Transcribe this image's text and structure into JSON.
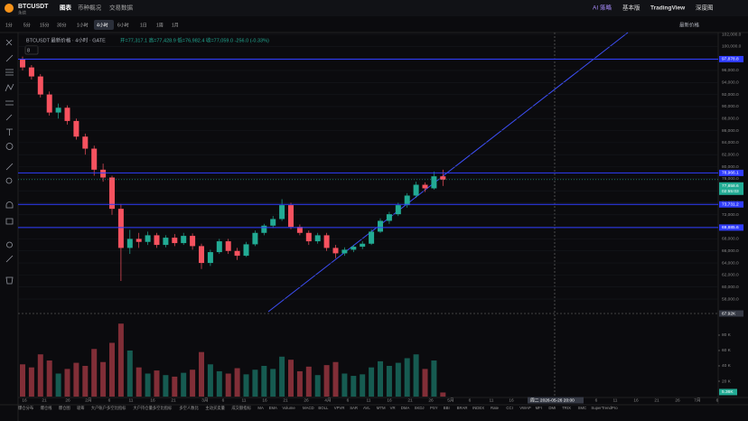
{
  "header": {
    "symbol": "BTCUSDT",
    "contract": "永续",
    "tabs": [
      "图表",
      "币种概况",
      "交易数据"
    ],
    "right": [
      "AI 策略",
      "基本版",
      "TradingView",
      "深度图"
    ]
  },
  "toolbar": {
    "intervals": [
      "1分",
      "5分",
      "15分",
      "30分",
      "1小时",
      "4小时",
      "6小时",
      "1日",
      "1周",
      "1月"
    ],
    "price_mode": "最新价格"
  },
  "legend": {
    "title": "BTCUSDT 最新价格 · 4小时 · GATE",
    "ohlc": "开=77,317.1 高=77,428.9 低=76,982.4 收=77,059.0 -256.0 (-0.33%)",
    "indicator_count": "8"
  },
  "chart_data": {
    "type": "candlestick",
    "up_color": "#22ab94",
    "down_color": "#f7525f",
    "grid": true,
    "candles": [
      [
        97800,
        98300,
        96000,
        96500
      ],
      [
        96500,
        96900,
        94500,
        95000
      ],
      [
        95000,
        95400,
        91500,
        92000
      ],
      [
        92000,
        92500,
        88500,
        89000
      ],
      [
        89000,
        90500,
        88000,
        89800
      ],
      [
        89800,
        90200,
        87000,
        87600
      ],
      [
        87600,
        88000,
        84500,
        85000
      ],
      [
        85000,
        85500,
        82000,
        83000
      ],
      [
        83000,
        83500,
        78500,
        79500
      ],
      [
        79500,
        80500,
        77500,
        78200
      ],
      [
        78200,
        78500,
        72000,
        73000
      ],
      [
        73000,
        73800,
        61000,
        66500
      ],
      [
        66500,
        69500,
        65500,
        68000
      ],
      [
        68000,
        69000,
        66500,
        67500
      ],
      [
        67500,
        69200,
        67000,
        68600
      ],
      [
        68600,
        69000,
        66500,
        67000
      ],
      [
        67000,
        68600,
        66600,
        68200
      ],
      [
        68200,
        68800,
        66800,
        67300
      ],
      [
        67300,
        69000,
        67000,
        68500
      ],
      [
        68500,
        68900,
        66200,
        66800
      ],
      [
        66800,
        67200,
        63000,
        64000
      ],
      [
        64000,
        66200,
        63500,
        65800
      ],
      [
        65800,
        68000,
        65500,
        67600
      ],
      [
        67600,
        68000,
        65500,
        66000
      ],
      [
        66000,
        66500,
        64500,
        65200
      ],
      [
        65200,
        67500,
        65000,
        67100
      ],
      [
        67100,
        69400,
        66800,
        69000
      ],
      [
        69000,
        70500,
        68600,
        70200
      ],
      [
        70200,
        71800,
        69800,
        71300
      ],
      [
        71300,
        74600,
        71000,
        73600
      ],
      [
        73600,
        74000,
        69600,
        70000
      ],
      [
        70000,
        70400,
        68600,
        69000
      ],
      [
        69000,
        69400,
        67000,
        67600
      ],
      [
        67600,
        69000,
        67200,
        68600
      ],
      [
        68600,
        69000,
        66000,
        66500
      ],
      [
        66500,
        67000,
        64800,
        65600
      ],
      [
        65600,
        66600,
        65200,
        66200
      ],
      [
        66200,
        67000,
        65800,
        66700
      ],
      [
        66700,
        67600,
        66300,
        67200
      ],
      [
        67200,
        69600,
        67000,
        69200
      ],
      [
        69200,
        71400,
        69000,
        71000
      ],
      [
        71000,
        72500,
        70500,
        72100
      ],
      [
        72100,
        74000,
        71800,
        73600
      ],
      [
        73600,
        75600,
        73200,
        75200
      ],
      [
        75200,
        77500,
        74800,
        77000
      ],
      [
        77000,
        77400,
        75800,
        76400
      ],
      [
        76400,
        79200,
        76200,
        78400
      ],
      [
        78400,
        79500,
        76800,
        77858.6
      ]
    ],
    "volume": [
      42000,
      38000,
      55000,
      47000,
      30000,
      36000,
      44000,
      40000,
      62000,
      45000,
      70000,
      95000,
      60000,
      38000,
      30000,
      34000,
      28000,
      26000,
      31000,
      35000,
      58000,
      42000,
      33000,
      30000,
      37000,
      29000,
      35000,
      40000,
      36000,
      52000,
      48000,
      33000,
      39000,
      28000,
      41000,
      45000,
      30000,
      27000,
      29000,
      38000,
      46000,
      40000,
      44000,
      50000,
      55000,
      36000,
      47000,
      5360
    ],
    "ylim": [
      55900,
      102300
    ],
    "yticks": [
      {
        "value": 58000,
        "label": "58,000.0"
      },
      {
        "value": 60000,
        "label": "60,000.0"
      },
      {
        "value": 62000,
        "label": "62,000.0"
      },
      {
        "value": 64000,
        "label": "64,000.0"
      },
      {
        "value": 66000,
        "label": "66,000.0"
      },
      {
        "value": 68000,
        "label": "68,000.0"
      },
      {
        "value": 70000,
        "label": "70,000.0"
      },
      {
        "value": 72000,
        "label": "72,000.0"
      },
      {
        "value": 74000,
        "label": "74,000.0"
      },
      {
        "value": 76000,
        "label": "76,000.0"
      },
      {
        "value": 78000,
        "label": "78,000.0"
      },
      {
        "value": 80000,
        "label": "80,000.0"
      },
      {
        "value": 82000,
        "label": "82,000.0"
      },
      {
        "value": 84000,
        "label": "84,000.0"
      },
      {
        "value": 86000,
        "label": "86,000.0"
      },
      {
        "value": 88000,
        "label": "88,000.0"
      },
      {
        "value": 90000,
        "label": "90,000.0"
      },
      {
        "value": 92000,
        "label": "92,000.0"
      },
      {
        "value": 94000,
        "label": "94,000.0"
      },
      {
        "value": 96000,
        "label": "96,000.0"
      },
      {
        "value": 98000,
        "label": "98,000.0"
      },
      {
        "value": 100000,
        "label": "100,000.0"
      },
      {
        "value": 102000,
        "label": "102,000.0"
      }
    ],
    "hlines": [
      {
        "value": 97878.8,
        "label": "97,878.8"
      },
      {
        "value": 78966.1,
        "label": "78,966.1"
      },
      {
        "value": 73731.2,
        "label": "73,731.2"
      },
      {
        "value": 69885.6,
        "label": "69,885.6"
      }
    ],
    "last_price": {
      "value": 77858.6,
      "label": "77,858.6"
    },
    "countdown": "02:55:03",
    "vlim": [
      0,
      107000
    ],
    "vticks": [
      {
        "value": 20000,
        "label": "20 K"
      },
      {
        "value": 40000,
        "label": "40 K"
      },
      {
        "value": 60000,
        "label": "60 K"
      },
      {
        "value": 80000,
        "label": "80 K"
      }
    ],
    "last_volume": {
      "value": 5360,
      "label": "5.36K"
    },
    "crosshair": {
      "volume_label": "67.92K",
      "time_label": "周二 2026-05-26 20:00"
    },
    "x_labels": [
      "16",
      "21",
      "26",
      "2月",
      "6",
      "11",
      "16",
      "21",
      "3月",
      "6",
      "11",
      "16",
      "21",
      "26",
      "4月",
      "6",
      "11",
      "16",
      "21",
      "26",
      "5月",
      "6",
      "11",
      "16",
      "21",
      "6",
      "11",
      "16",
      "21",
      "26",
      "7月",
      "6"
    ]
  },
  "indicators": [
    "爆仓分布",
    "爆仓线",
    "爆仓图",
    "吸筹",
    "大户账户多空比指标",
    "大户持仓量多空比指标",
    "多空人数比",
    "主动买卖量",
    "成交额指标",
    "MA",
    "EMA",
    "Volume",
    "MACD",
    "BOLL",
    "VPVR",
    "SAR",
    "AVL",
    "MTM",
    "VR",
    "DMA",
    "SKDJ",
    "PSY",
    "BBI",
    "BRAR",
    "INDEX",
    "Rate",
    "CCI",
    "VWAP",
    "MFI",
    "DMI",
    "TRIX",
    "SMC",
    "SuperTrendPro"
  ]
}
